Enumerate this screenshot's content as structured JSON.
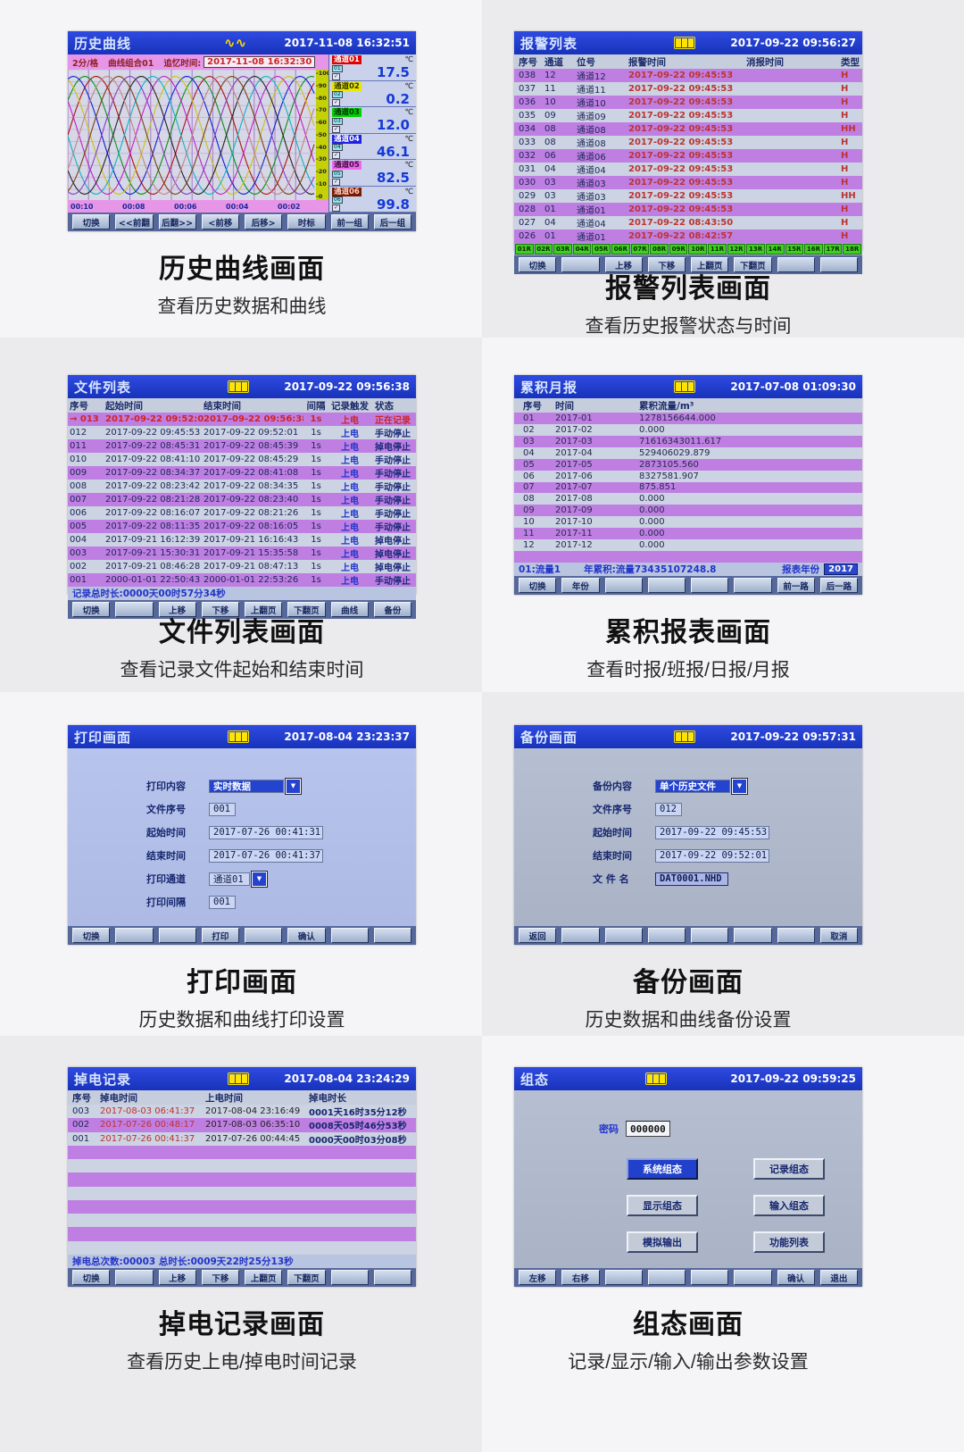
{
  "panels": {
    "history": {
      "title": "历史曲线",
      "logo": "∿∿",
      "datetime": "2017-11-08 16:32:51",
      "info_scale": "2分/格",
      "info_group": "曲线组合01",
      "info_recall_label": "追忆时间:",
      "info_recall_value": "2017-11-08 16:32:30",
      "y_ticks": [
        "100",
        "90",
        "80",
        "70",
        "60",
        "50",
        "40",
        "30",
        "20",
        "10",
        "0"
      ],
      "x_ticks": [
        "00:10",
        "00:08",
        "00:06",
        "00:04",
        "00:02"
      ],
      "curve_colors": [
        "#b01010",
        "#089018",
        "#1020d0",
        "#c8c410",
        "#c420c4",
        "#10b4c0",
        "#242424",
        "#8a3cc0",
        "#7a4010",
        "#c08484"
      ],
      "channels": [
        {
          "name": "通道01",
          "unit": "℃",
          "tag": "01",
          "chk": "✓",
          "value": "17.5",
          "color": "#e00000",
          "text": "#ffffff"
        },
        {
          "name": "通道02",
          "unit": "℃",
          "tag": "02",
          "chk": "✓",
          "value": "0.2",
          "color": "#e8e800",
          "text": "#333300"
        },
        {
          "name": "通道03",
          "unit": "℃",
          "tag": "03",
          "chk": "✓",
          "value": "12.0",
          "color": "#00d000",
          "text": "#0c300c"
        },
        {
          "name": "通道04",
          "unit": "℃",
          "tag": "04",
          "chk": "✓",
          "value": "46.1",
          "color": "#2020e0",
          "text": "#ffffff"
        },
        {
          "name": "通道05",
          "unit": "℃",
          "tag": "05",
          "chk": "✓",
          "value": "82.5",
          "color": "#ee66ee",
          "text": "#401040"
        },
        {
          "name": "通道06",
          "unit": "℃",
          "tag": "06",
          "chk": "✓",
          "value": "99.8",
          "color": "#7a1800",
          "text": "#ffd2c2"
        }
      ],
      "buttons": [
        "切换",
        "<<前翻",
        "后翻>>",
        "<前移",
        "后移>",
        "时标",
        "前一组",
        "后一组"
      ],
      "caption": "历史曲线画面",
      "subcaption": "查看历史数据和曲线"
    },
    "alarm": {
      "title": "报警列表",
      "datetime": "2017-09-22 09:56:27",
      "columns": [
        "序号",
        "通道",
        "位号",
        "报警时间",
        "消报时间",
        "类型"
      ],
      "rows": [
        [
          "038",
          "12",
          "通道12",
          "2017-09-22 09:45:53",
          "",
          "H"
        ],
        [
          "037",
          "11",
          "通道11",
          "2017-09-22 09:45:53",
          "",
          "H"
        ],
        [
          "036",
          "10",
          "通道10",
          "2017-09-22 09:45:53",
          "",
          "H"
        ],
        [
          "035",
          "09",
          "通道09",
          "2017-09-22 09:45:53",
          "",
          "H"
        ],
        [
          "034",
          "08",
          "通道08",
          "2017-09-22 09:45:53",
          "",
          "HH"
        ],
        [
          "033",
          "08",
          "通道08",
          "2017-09-22 09:45:53",
          "",
          "H"
        ],
        [
          "032",
          "06",
          "通道06",
          "2017-09-22 09:45:53",
          "",
          "H"
        ],
        [
          "031",
          "04",
          "通道04",
          "2017-09-22 09:45:53",
          "",
          "H"
        ],
        [
          "030",
          "03",
          "通道03",
          "2017-09-22 09:45:53",
          "",
          "H"
        ],
        [
          "029",
          "03",
          "通道03",
          "2017-09-22 09:45:53",
          "",
          "HH"
        ],
        [
          "028",
          "01",
          "通道01",
          "2017-09-22 09:45:53",
          "",
          "H"
        ],
        [
          "027",
          "04",
          "通道04",
          "2017-09-22 08:43:50",
          "",
          "H"
        ],
        [
          "026",
          "01",
          "通道01",
          "2017-09-22 08:42:57",
          "",
          "H"
        ]
      ],
      "relay_cells": [
        "01R",
        "02R",
        "03R",
        "04R",
        "05R",
        "06R",
        "07R",
        "08R",
        "09R",
        "10R",
        "11R",
        "12R",
        "13R",
        "14R",
        "15R",
        "16R",
        "17R",
        "18R"
      ],
      "buttons": [
        "切换",
        "",
        "上移",
        "下移",
        "上翻页",
        "下翻页",
        "",
        ""
      ],
      "caption": "报警列表画面",
      "subcaption": "查看历史报警状态与时间"
    },
    "files": {
      "title": "文件列表",
      "datetime": "2017-09-22 09:56:38",
      "columns": [
        "序号",
        "起始时间",
        "结束时间",
        "间隔",
        "记录触发",
        "状态"
      ],
      "rows": [
        [
          "→ 013",
          "2017-09-22 09:52:03",
          "2017-09-22 09:56:38",
          "1s",
          "上电",
          "正在记录"
        ],
        [
          "012",
          "2017-09-22 09:45:53",
          "2017-09-22 09:52:01",
          "1s",
          "上电",
          "手动停止"
        ],
        [
          "011",
          "2017-09-22 08:45:31",
          "2017-09-22 08:45:39",
          "1s",
          "上电",
          "掉电停止"
        ],
        [
          "010",
          "2017-09-22 08:41:10",
          "2017-09-22 08:45:29",
          "1s",
          "上电",
          "手动停止"
        ],
        [
          "009",
          "2017-09-22 08:34:37",
          "2017-09-22 08:41:08",
          "1s",
          "上电",
          "手动停止"
        ],
        [
          "008",
          "2017-09-22 08:23:42",
          "2017-09-22 08:34:35",
          "1s",
          "上电",
          "手动停止"
        ],
        [
          "007",
          "2017-09-22 08:21:28",
          "2017-09-22 08:23:40",
          "1s",
          "上电",
          "手动停止"
        ],
        [
          "006",
          "2017-09-22 08:16:07",
          "2017-09-22 08:21:26",
          "1s",
          "上电",
          "手动停止"
        ],
        [
          "005",
          "2017-09-22 08:11:35",
          "2017-09-22 08:16:05",
          "1s",
          "上电",
          "手动停止"
        ],
        [
          "004",
          "2017-09-21 16:12:39",
          "2017-09-21 16:16:43",
          "1s",
          "上电",
          "掉电停止"
        ],
        [
          "003",
          "2017-09-21 15:30:31",
          "2017-09-21 15:35:58",
          "1s",
          "上电",
          "掉电停止"
        ],
        [
          "002",
          "2017-09-21 08:46:28",
          "2017-09-21 08:47:13",
          "1s",
          "上电",
          "掉电停止"
        ],
        [
          "001",
          "2000-01-01 22:50:43",
          "2000-01-01 22:53:26",
          "1s",
          "上电",
          "手动停止"
        ]
      ],
      "footer": "记录总时长:0000天00时57分34秒",
      "buttons": [
        "切换",
        "",
        "上移",
        "下移",
        "上翻页",
        "下翻页",
        "曲线",
        "备份"
      ],
      "caption": "文件列表画面",
      "subcaption": "查看记录文件起始和结束时间"
    },
    "monthly": {
      "title": "累积月报",
      "datetime": "2017-07-08 01:09:30",
      "columns": [
        "序号",
        "时间",
        "累积流量/m³"
      ],
      "rows": [
        [
          "01",
          "2017-01",
          "1278156644.000"
        ],
        [
          "02",
          "2017-02",
          "0.000"
        ],
        [
          "03",
          "2017-03",
          "71616343011.617"
        ],
        [
          "04",
          "2017-04",
          "529406029.879"
        ],
        [
          "05",
          "2017-05",
          "2873105.560"
        ],
        [
          "06",
          "2017-06",
          "8327581.907"
        ],
        [
          "07",
          "2017-07",
          "875.851"
        ],
        [
          "08",
          "2017-08",
          "0.000"
        ],
        [
          "09",
          "2017-09",
          "0.000"
        ],
        [
          "10",
          "2017-10",
          "0.000"
        ],
        [
          "11",
          "2017-11",
          "0.000"
        ],
        [
          "12",
          "2017-12",
          "0.000"
        ],
        [
          "",
          "",
          ""
        ]
      ],
      "footer_left": "01:流量1",
      "footer_mid": "年累积:流量73435107248.8",
      "footer_year_label": "报表年份",
      "footer_year": "2017",
      "buttons": [
        "切换",
        "年份",
        "",
        "",
        "",
        "",
        "前一路",
        "后一路"
      ],
      "caption": "累积报表画面",
      "subcaption": "查看时报/班报/日报/月报"
    },
    "print": {
      "title": "打印画面",
      "datetime": "2017-08-04 23:23:37",
      "fields": [
        {
          "label": "打印内容",
          "value": "实时数据",
          "type": "dropdown"
        },
        {
          "label": "文件序号",
          "value": "001",
          "type": "input-small"
        },
        {
          "label": "起始时间",
          "value": "2017-07-26 00:41:31",
          "type": "input"
        },
        {
          "label": "结束时间",
          "value": "2017-07-26 00:41:37",
          "type": "input"
        },
        {
          "label": "打印通道",
          "value": "通道01",
          "type": "dropdown-plain"
        },
        {
          "label": "打印间隔",
          "value": "001",
          "type": "input-small"
        }
      ],
      "buttons": [
        "切换",
        "",
        "",
        "打印",
        "",
        "确认",
        "",
        ""
      ],
      "caption": "打印画面",
      "subcaption": "历史数据和曲线打印设置"
    },
    "backup": {
      "title": "备份画面",
      "datetime": "2017-09-22 09:57:31",
      "fields": [
        {
          "label": "备份内容",
          "value": "单个历史文件",
          "type": "dropdown"
        },
        {
          "label": "文件序号",
          "value": "012",
          "type": "input-small"
        },
        {
          "label": "起始时间",
          "value": "2017-09-22 09:45:53",
          "type": "input"
        },
        {
          "label": "结束时间",
          "value": "2017-09-22 09:52:01",
          "type": "input"
        },
        {
          "label": "文 件 名",
          "value": "DAT0001.NHD",
          "type": "input-hl"
        }
      ],
      "buttons": [
        "返回",
        "",
        "",
        "",
        "",
        "",
        "",
        "取消"
      ],
      "caption": "备份画面",
      "subcaption": "历史数据和曲线备份设置"
    },
    "poweroff": {
      "title": "掉电记录",
      "datetime": "2017-08-04 23:24:29",
      "columns": [
        "序号",
        "掉电时间",
        "上电时间",
        "掉电时长"
      ],
      "rows": [
        [
          "003",
          "2017-08-03 06:41:37",
          "2017-08-04 23:16:49",
          "0001天16时35分12秒"
        ],
        [
          "002",
          "2017-07-26 00:48:17",
          "2017-08-03 06:35:10",
          "0008天05时46分53秒"
        ],
        [
          "001",
          "2017-07-26 00:41:37",
          "2017-07-26 00:44:45",
          "0000天00时03分08秒"
        ],
        [
          "",
          "",
          "",
          ""
        ],
        [
          "",
          "",
          "",
          ""
        ],
        [
          "",
          "",
          "",
          ""
        ],
        [
          "",
          "",
          "",
          ""
        ],
        [
          "",
          "",
          "",
          ""
        ],
        [
          "",
          "",
          "",
          ""
        ],
        [
          "",
          "",
          "",
          ""
        ],
        [
          "",
          "",
          "",
          ""
        ]
      ],
      "footer": "掉电总次数:00003    总时长:0009天22时25分13秒",
      "buttons": [
        "切换",
        "",
        "上移",
        "下移",
        "上翻页",
        "下翻页",
        "",
        ""
      ],
      "caption": "掉电记录画面",
      "subcaption": "查看历史上电/掉电时间记录"
    },
    "config": {
      "title": "组态",
      "datetime": "2017-09-22 09:59:25",
      "password_label": "密码",
      "password_value": "000000",
      "menu_buttons": [
        {
          "label": "系统组态",
          "selected": true
        },
        {
          "label": "记录组态",
          "selected": false
        },
        {
          "label": "显示组态",
          "selected": false
        },
        {
          "label": "输入组态",
          "selected": false
        },
        {
          "label": "模拟输出",
          "selected": false
        },
        {
          "label": "功能列表",
          "selected": false
        }
      ],
      "buttons": [
        "左移",
        "右移",
        "",
        "",
        "",
        "",
        "确认",
        "退出"
      ],
      "caption": "组态画面",
      "subcaption": "记录/显示/输入/输出参数设置"
    }
  }
}
